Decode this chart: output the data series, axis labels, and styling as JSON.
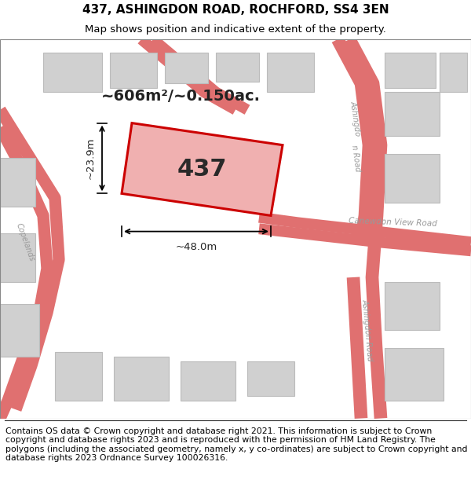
{
  "title": "437, ASHINGDON ROAD, ROCHFORD, SS4 3EN",
  "subtitle": "Map shows position and indicative extent of the property.",
  "footer": "Contains OS data © Crown copyright and database right 2021. This information is subject to Crown copyright and database rights 2023 and is reproduced with the permission of HM Land Registry. The polygons (including the associated geometry, namely x, y co-ordinates) are subject to Crown copyright and database rights 2023 Ordnance Survey 100026316.",
  "map_bg": "#efefef",
  "page_bg": "#ffffff",
  "plot_label": "437",
  "area_label": "~606m²/~0.150ac.",
  "dim_width": "~48.0m",
  "dim_height": "~23.9m",
  "plot_color": "#cc0000",
  "plot_fill": "#f0b0b0",
  "road_color": "#e07070",
  "building_fill": "#d0d0d0",
  "building_edge": "#bbbbbb",
  "title_fontsize": 11,
  "subtitle_fontsize": 9.5,
  "footer_fontsize": 7.8
}
